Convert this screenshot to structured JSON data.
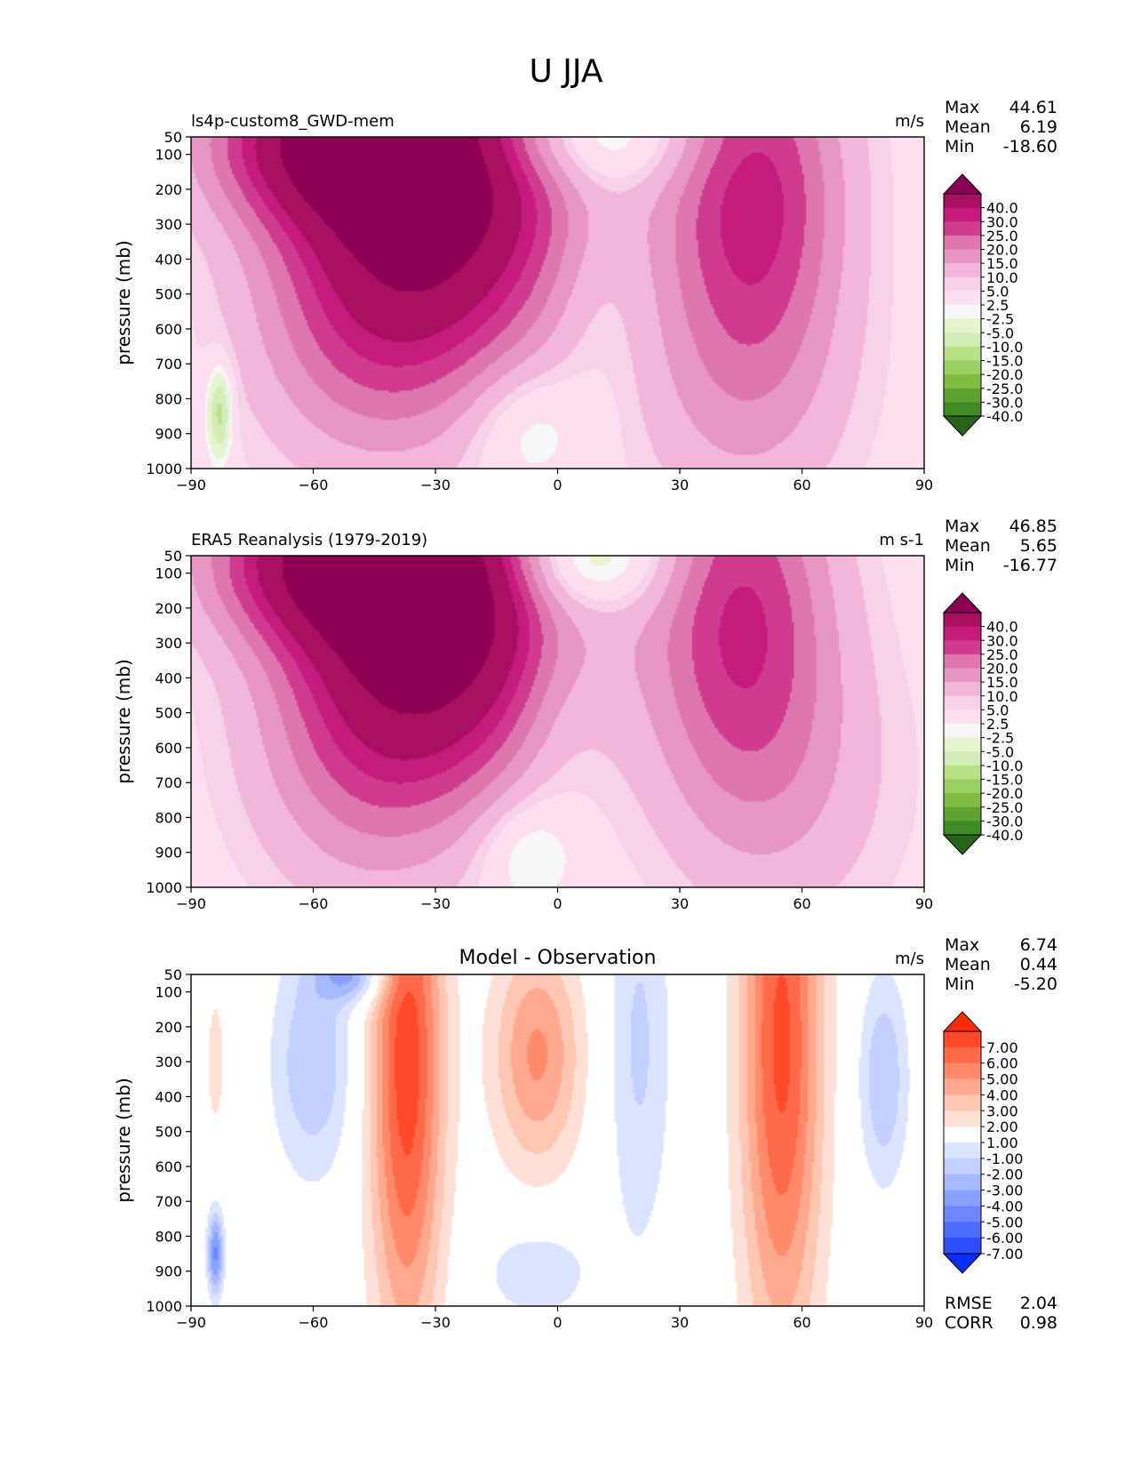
{
  "figure_title": "U JJA",
  "chart_data": [
    {
      "type": "heatmap",
      "id": "model",
      "title": "ls4p-custom8_GWD-mem",
      "units": "m/s",
      "xlabel": "",
      "ylabel": "pressure (mb)",
      "xlim": [
        -90,
        90
      ],
      "x_ticks": [
        "−90",
        "−60",
        "−30",
        "0",
        "30",
        "60",
        "90"
      ],
      "y_ticks": [
        "50",
        "100",
        "200",
        "300",
        "400",
        "500",
        "600",
        "700",
        "800",
        "900",
        "1000"
      ],
      "stats": [
        {
          "label": "Max",
          "value": "44.61"
        },
        {
          "label": "Mean",
          "value": "6.19"
        },
        {
          "label": "Min",
          "value": "-18.60"
        }
      ],
      "colorbar": {
        "labels": [
          "40.0",
          "30.0",
          "25.0",
          "20.0",
          "15.0",
          "10.0",
          "5.0",
          "2.5",
          "-2.5",
          "-5.0",
          "-10.0",
          "-15.0",
          "-20.0",
          "-25.0",
          "-30.0",
          "-40.0"
        ],
        "colors": [
          "#8e0152",
          "#a8105f",
          "#c51b7d",
          "#cf3b8d",
          "#de77ae",
          "#e795c1",
          "#f1b6da",
          "#f6d2e8",
          "#fde0ef",
          "#f7f7f7",
          "#e6f5d0",
          "#d3ecb4",
          "#b8e186",
          "#9bcf63",
          "#7fbc41",
          "#5ea22f",
          "#3f8b25",
          "#276419"
        ]
      },
      "blobs": [
        {
          "x": -30,
          "p": 180,
          "rx": 34,
          "ry": 520,
          "v": 44.6
        },
        {
          "x": -55,
          "p": 60,
          "rx": 30,
          "ry": 230,
          "v": 32
        },
        {
          "x": -48,
          "p": 600,
          "rx": 28,
          "ry": 420,
          "v": 12
        },
        {
          "x": 48,
          "p": 200,
          "rx": 22,
          "ry": 520,
          "v": 27
        },
        {
          "x": 45,
          "p": 800,
          "rx": 28,
          "ry": 420,
          "v": 8
        },
        {
          "x": 5,
          "p": 50,
          "rx": 30,
          "ry": 150,
          "v": -14
        },
        {
          "x": -8,
          "p": 880,
          "rx": 14,
          "ry": 180,
          "v": -8
        },
        {
          "x": 10,
          "p": 500,
          "rx": 12,
          "ry": 400,
          "v": -4
        },
        {
          "x": -83,
          "p": 840,
          "rx": 3,
          "ry": 130,
          "v": -18.6
        }
      ]
    },
    {
      "type": "heatmap",
      "id": "obs",
      "title": "ERA5 Reanalysis (1979-2019)",
      "units": "m s-1",
      "xlabel": "",
      "ylabel": "pressure (mb)",
      "xlim": [
        -90,
        90
      ],
      "x_ticks": [
        "−90",
        "−60",
        "−30",
        "0",
        "30",
        "60",
        "90"
      ],
      "y_ticks": [
        "50",
        "100",
        "200",
        "300",
        "400",
        "500",
        "600",
        "700",
        "800",
        "900",
        "1000"
      ],
      "stats": [
        {
          "label": "Max",
          "value": "46.85"
        },
        {
          "label": "Mean",
          "value": "5.65"
        },
        {
          "label": "Min",
          "value": "-16.77"
        }
      ],
      "colorbar": {
        "labels": [
          "40.0",
          "30.0",
          "25.0",
          "20.0",
          "15.0",
          "10.0",
          "5.0",
          "2.5",
          "-2.5",
          "-5.0",
          "-10.0",
          "-15.0",
          "-20.0",
          "-25.0",
          "-30.0",
          "-40.0"
        ],
        "colors": [
          "#8e0152",
          "#a8105f",
          "#c51b7d",
          "#cf3b8d",
          "#de77ae",
          "#e795c1",
          "#f1b6da",
          "#f6d2e8",
          "#fde0ef",
          "#f7f7f7",
          "#e6f5d0",
          "#d3ecb4",
          "#b8e186",
          "#9bcf63",
          "#7fbc41",
          "#5ea22f",
          "#3f8b25",
          "#276419"
        ]
      },
      "blobs": [
        {
          "x": -30,
          "p": 200,
          "rx": 32,
          "ry": 480,
          "v": 46.8
        },
        {
          "x": -55,
          "p": 60,
          "rx": 30,
          "ry": 230,
          "v": 33
        },
        {
          "x": -48,
          "p": 620,
          "rx": 28,
          "ry": 440,
          "v": 12
        },
        {
          "x": 45,
          "p": 200,
          "rx": 22,
          "ry": 520,
          "v": 24
        },
        {
          "x": 55,
          "p": 700,
          "rx": 30,
          "ry": 460,
          "v": 8
        },
        {
          "x": 5,
          "p": 60,
          "rx": 22,
          "ry": 150,
          "v": -16.7
        },
        {
          "x": 0,
          "p": 450,
          "rx": 12,
          "ry": 400,
          "v": -4
        },
        {
          "x": -8,
          "p": 900,
          "rx": 12,
          "ry": 160,
          "v": -8
        }
      ]
    },
    {
      "type": "heatmap",
      "id": "diff",
      "title": "Model - Observation",
      "units": "m/s",
      "xlabel": "",
      "ylabel": "pressure (mb)",
      "xlim": [
        -90,
        90
      ],
      "x_ticks": [
        "−90",
        "−60",
        "−30",
        "0",
        "30",
        "60",
        "90"
      ],
      "y_ticks": [
        "50",
        "100",
        "200",
        "300",
        "400",
        "500",
        "600",
        "700",
        "800",
        "900",
        "1000"
      ],
      "stats": [
        {
          "label": "Max",
          "value": "6.74"
        },
        {
          "label": "Mean",
          "value": "0.44"
        },
        {
          "label": "Min",
          "value": "-5.20"
        }
      ],
      "extra_stats": [
        {
          "label": "RMSE",
          "value": "2.04"
        },
        {
          "label": "CORR",
          "value": "0.98"
        }
      ],
      "colorbar": {
        "labels": [
          "7.00",
          "6.00",
          "5.00",
          "4.00",
          "3.00",
          "2.00",
          "1.00",
          "-1.00",
          "-2.00",
          "-3.00",
          "-4.00",
          "-5.00",
          "-6.00",
          "-7.00"
        ],
        "colors": [
          "#ff2a00",
          "#ff4a2a",
          "#ff6a4a",
          "#ff8a6a",
          "#ffaa8e",
          "#ffc6b2",
          "#ffe0d6",
          "#ffffff",
          "#dde4ff",
          "#c4d0ff",
          "#a8b8ff",
          "#8aa0ff",
          "#6c86ff",
          "#4c6cff",
          "#2a4eff",
          "#0a2eff"
        ]
      },
      "blobs": [
        {
          "x": -37,
          "p": 300,
          "rx": 9,
          "ry": 820,
          "v": 6.7
        },
        {
          "x": -5,
          "p": 280,
          "rx": 11,
          "ry": 330,
          "v": 4.2
        },
        {
          "x": 55,
          "p": 250,
          "rx": 10,
          "ry": 900,
          "v": 6.3
        },
        {
          "x": -60,
          "p": 300,
          "rx": 10,
          "ry": 330,
          "v": -3
        },
        {
          "x": 80,
          "p": 350,
          "rx": 6,
          "ry": 300,
          "v": -3
        },
        {
          "x": 20,
          "p": 250,
          "rx": 8,
          "ry": 600,
          "v": -2.2
        },
        {
          "x": -5,
          "p": 900,
          "rx": 14,
          "ry": 150,
          "v": -1.8
        },
        {
          "x": -84,
          "p": 850,
          "rx": 2,
          "ry": 120,
          "v": -5.2
        },
        {
          "x": -50,
          "p": 50,
          "rx": 9,
          "ry": 80,
          "v": -4
        },
        {
          "x": -84,
          "p": 300,
          "rx": 2,
          "ry": 180,
          "v": 2
        }
      ]
    }
  ]
}
